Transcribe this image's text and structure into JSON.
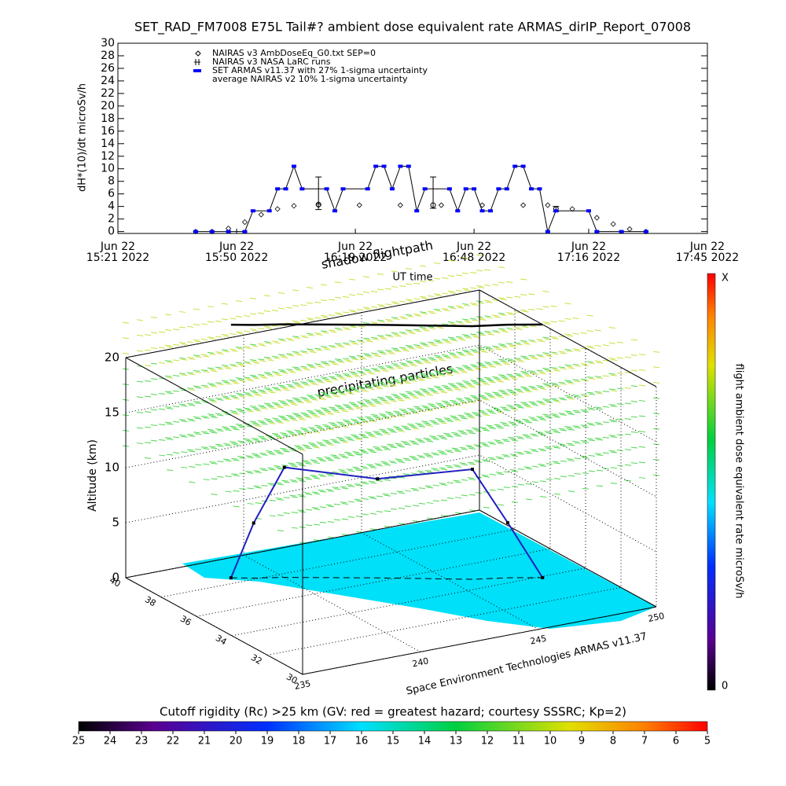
{
  "chart_data": [
    {
      "type": "line",
      "title": "SET_RAD_FM7008  E75L Tail#? ambient dose equivalent rate ARMAS_dirIP_Report_07008",
      "ylabel": "dH*(10)/dt microSv/h",
      "xlabel": "UT time",
      "xlim": [
        "2022-06-22 15:21",
        "2022-06-22 17:45"
      ],
      "xticks": [
        {
          "value": "2022-06-22 15:21",
          "label": "Jun 22\n15:21 2022"
        },
        {
          "value": "2022-06-22 15:50",
          "label": "Jun 22\n15:50 2022"
        },
        {
          "value": "2022-06-22 16:19",
          "label": "Jun 22\n16:19 2022"
        },
        {
          "value": "2022-06-22 16:48",
          "label": "Jun 22\n16:48 2022"
        },
        {
          "value": "2022-06-22 17:16",
          "label": "Jun 22\n17:16 2022"
        },
        {
          "value": "2022-06-22 17:45",
          "label": "Jun 22\n17:45 2022"
        }
      ],
      "ylim": [
        -0.3,
        30
      ],
      "yticks": [
        0,
        2,
        4,
        6,
        8,
        10,
        12,
        14,
        16,
        18,
        20,
        22,
        24,
        26,
        28,
        30
      ],
      "legend_note": "average NAIRAS v2 10% 1-sigma uncertainty",
      "series": [
        {
          "name": "NAIRAS v3 AmbDoseEq_G0.txt SEP=0",
          "marker": "diamond",
          "color": "#000000",
          "x": [
            "2022-06-22 15:40",
            "2022-06-22 15:44",
            "2022-06-22 15:48",
            "2022-06-22 15:52",
            "2022-06-22 15:56",
            "2022-06-22 16:00",
            "2022-06-22 16:04",
            "2022-06-22 16:10",
            "2022-06-22 16:20",
            "2022-06-22 16:30",
            "2022-06-22 16:40",
            "2022-06-22 16:50",
            "2022-06-22 17:00",
            "2022-06-22 17:06",
            "2022-06-22 17:12",
            "2022-06-22 17:18",
            "2022-06-22 17:22",
            "2022-06-22 17:26",
            "2022-06-22 17:30"
          ],
          "values": [
            0,
            0,
            0.5,
            1.5,
            2.7,
            3.6,
            4.1,
            4.2,
            4.2,
            4.2,
            4.2,
            4.2,
            4.2,
            4.2,
            3.6,
            2.2,
            1.2,
            0.4,
            0
          ]
        },
        {
          "name": "NAIRAS v3 NASA LaRC runs",
          "marker": "errorbar",
          "color": "#000000",
          "x": [
            "2022-06-22 16:10",
            "2022-06-22 16:38",
            "2022-06-22 17:08"
          ],
          "values": [
            4.3,
            4.2,
            3.6
          ],
          "error_minus": [
            0.8,
            0.5,
            0.4
          ],
          "error_plus": [
            4.4,
            4.5,
            0.4
          ]
        },
        {
          "name": "SET ARMAS v11.37 with 27% 1-sigma uncertainty",
          "marker": "dot",
          "color": "#0000ff",
          "x": [
            "2022-06-22 15:40",
            "2022-06-22 15:44",
            "2022-06-22 15:48",
            "2022-06-22 15:52",
            "2022-06-22 15:54",
            "2022-06-22 15:58",
            "2022-06-22 16:00",
            "2022-06-22 16:02",
            "2022-06-22 16:04",
            "2022-06-22 16:06",
            "2022-06-22 16:12",
            "2022-06-22 16:14",
            "2022-06-22 16:16",
            "2022-06-22 16:22",
            "2022-06-22 16:24",
            "2022-06-22 16:26",
            "2022-06-22 16:28",
            "2022-06-22 16:30",
            "2022-06-22 16:32",
            "2022-06-22 16:34",
            "2022-06-22 16:36",
            "2022-06-22 16:42",
            "2022-06-22 16:44",
            "2022-06-22 16:46",
            "2022-06-22 16:48",
            "2022-06-22 16:50",
            "2022-06-22 16:52",
            "2022-06-22 16:54",
            "2022-06-22 16:56",
            "2022-06-22 16:58",
            "2022-06-22 17:00",
            "2022-06-22 17:02",
            "2022-06-22 17:04",
            "2022-06-22 17:06",
            "2022-06-22 17:08",
            "2022-06-22 17:16",
            "2022-06-22 17:18",
            "2022-06-22 17:24",
            "2022-06-22 17:30"
          ],
          "values": [
            0,
            0,
            0,
            0,
            3.3,
            3.3,
            6.8,
            6.8,
            10.4,
            6.8,
            6.8,
            3.3,
            6.8,
            6.8,
            10.4,
            10.4,
            6.8,
            10.4,
            10.4,
            3.3,
            6.8,
            6.8,
            3.3,
            6.8,
            6.8,
            3.3,
            3.3,
            6.8,
            6.8,
            10.4,
            10.4,
            6.8,
            6.8,
            0,
            3.3,
            3.3,
            0,
            0,
            0
          ]
        }
      ]
    },
    {
      "type": "surface3d",
      "zlabel": "Altitude (km)",
      "zlim": [
        0,
        20
      ],
      "zticks": [
        0,
        5,
        10,
        15,
        20
      ],
      "latlim": [
        30,
        40
      ],
      "latticks": [
        40,
        38,
        36,
        34,
        32,
        30
      ],
      "lonlim": [
        235,
        250
      ],
      "lonticks": [
        235,
        240,
        245,
        250
      ],
      "annotations": [
        "shadow flightpath",
        "precipitating particles"
      ],
      "credit": "Space Environment Technologies ARMAS v11.37",
      "flight_path": {
        "color": "#2020c0",
        "lon": [
          238.3,
          239,
          240,
          242.9,
          245.8,
          247,
          248.1
        ],
        "lat": [
          38.45,
          38.1,
          37.7,
          36.3,
          34.8,
          34.4,
          33.9
        ],
        "alt": [
          0,
          5,
          10,
          9,
          10,
          5,
          0
        ]
      },
      "colorbar": {
        "label": "flight ambient dose equivalent rate microSv/h",
        "top": "X",
        "bottom": 0
      }
    },
    {
      "type": "colorbar",
      "title": "Cutoff rigidity (Rc) >25 km (GV: red = greatest hazard; courtesy SSSRC; Kp=2)",
      "xlim": [
        25,
        5
      ],
      "xticks": [
        25,
        24,
        23,
        22,
        21,
        20,
        19,
        18,
        17,
        16,
        15,
        14,
        13,
        12,
        11,
        10,
        9,
        8,
        7,
        6,
        5
      ]
    }
  ]
}
